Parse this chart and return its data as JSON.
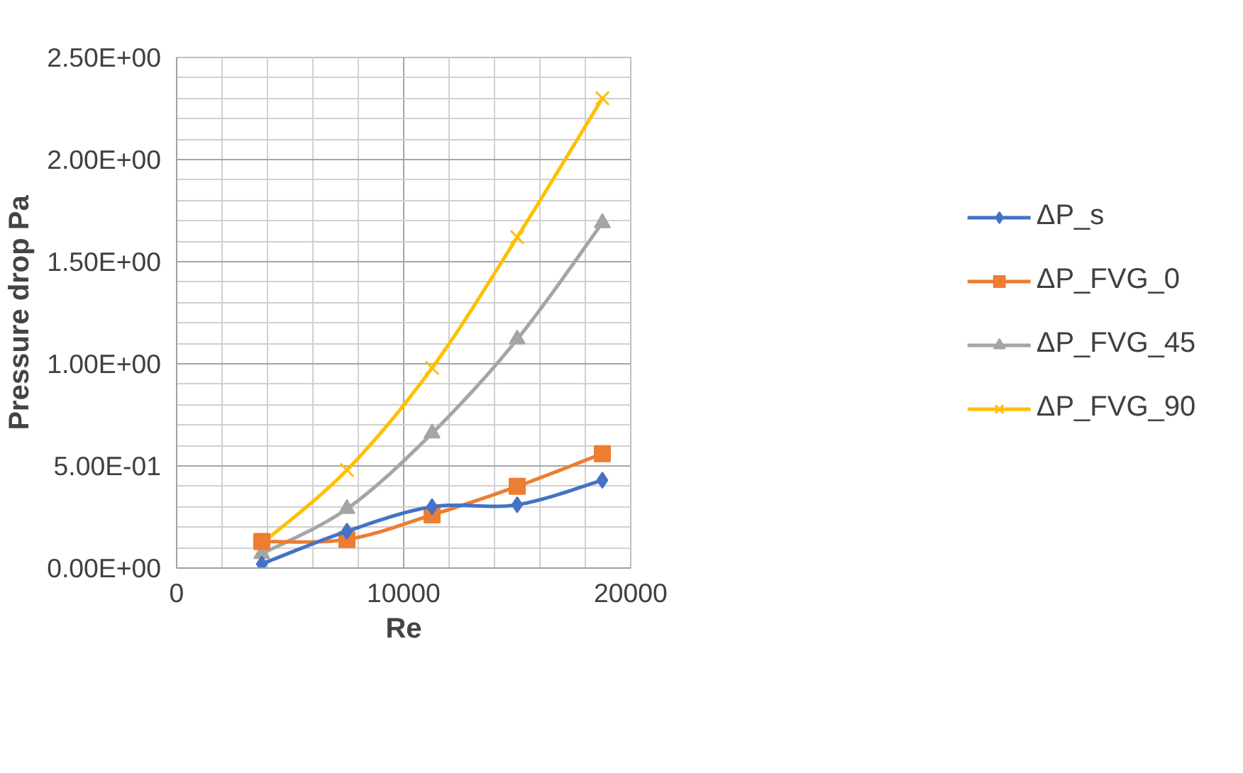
{
  "chart_data": {
    "type": "line",
    "xlabel": "Re",
    "ylabel": "Pressure drop Pa",
    "x": [
      3750,
      7500,
      11250,
      15000,
      18750
    ],
    "series": [
      {
        "name": "ΔP_s",
        "color": "#4472c4",
        "marker": "diamond",
        "values": [
          0.02,
          0.18,
          0.3,
          0.31,
          0.43
        ]
      },
      {
        "name": "ΔP_FVG_0",
        "color": "#ed7d31",
        "marker": "square",
        "values": [
          0.13,
          0.14,
          0.26,
          0.4,
          0.56
        ]
      },
      {
        "name": "ΔP_FVG_45",
        "color": "#a5a5a5",
        "marker": "triangle",
        "values": [
          0.07,
          0.29,
          0.66,
          1.12,
          1.69
        ]
      },
      {
        "name": "ΔP_FVG_90",
        "color": "#ffc000",
        "marker": "cross",
        "values": [
          0.12,
          0.48,
          0.98,
          1.62,
          2.3
        ]
      }
    ],
    "xlim": [
      0,
      20000
    ],
    "xticks": [
      0,
      10000,
      20000
    ],
    "ylim": [
      0,
      2.5
    ],
    "yticks": [
      {
        "value": 0,
        "label": "0.00E+00"
      },
      {
        "value": 0.5,
        "label": "5.00E-01"
      },
      {
        "value": 1,
        "label": "1.00E+00"
      },
      {
        "value": 1.5,
        "label": "1.50E+00"
      },
      {
        "value": 2,
        "label": "2.00E+00"
      },
      {
        "value": 2.5,
        "label": "2.50E+00"
      }
    ],
    "grid": true,
    "legend": "right",
    "line_style": "solid"
  }
}
